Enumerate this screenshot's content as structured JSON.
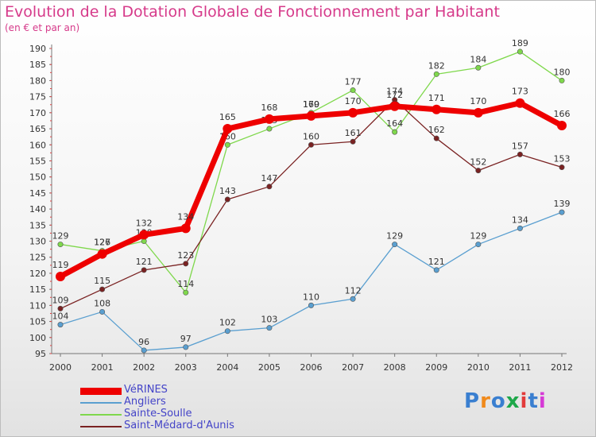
{
  "title": "Evolution de la Dotation Globale de Fonctionnement par Habitant",
  "subtitle": "(en € et par an)",
  "brand": {
    "text": "Proxiti",
    "colors": [
      "#3a7fd0",
      "#f08a1c",
      "#3a7fd0",
      "#1ea84a",
      "#e23b3b",
      "#3a7fd0",
      "#d63ad6"
    ]
  },
  "chart_data": {
    "type": "line",
    "title": "Evolution de la Dotation Globale de Fonctionnement par Habitant",
    "subtitle": "(en € et par an)",
    "x": [
      "2000",
      "2001",
      "2002",
      "2003",
      "2004",
      "2005",
      "2006",
      "2007",
      "2008",
      "2009",
      "2010",
      "2011",
      "2012"
    ],
    "ylim": [
      95,
      190
    ],
    "yticks": [
      95,
      100,
      105,
      110,
      115,
      120,
      125,
      130,
      135,
      140,
      145,
      150,
      155,
      160,
      165,
      170,
      175,
      180,
      185,
      190
    ],
    "grid": false,
    "legend_position": "bottom-left",
    "series": [
      {
        "name": "Angliers",
        "color": "#5a9fd0",
        "values": [
          104,
          108,
          96,
          97,
          102,
          103,
          110,
          112,
          129,
          121,
          129,
          134,
          139
        ]
      },
      {
        "name": "Sainte-Soulle",
        "color": "#7fd84c",
        "values": [
          129,
          127,
          130,
          114,
          160,
          165,
          170,
          177,
          164,
          182,
          184,
          189,
          180
        ]
      },
      {
        "name": "Saint-Médard-d'Aunis",
        "color": "#7a2222",
        "values": [
          109,
          115,
          121,
          123,
          143,
          147,
          160,
          161,
          174,
          162,
          152,
          157,
          153
        ]
      },
      {
        "name": "VéRINES",
        "color": "#ee0000",
        "values": [
          119,
          126,
          132,
          134,
          165,
          168,
          169,
          170,
          172,
          171,
          170,
          173,
          166
        ]
      }
    ]
  },
  "legend_order": [
    "VéRINES",
    "Angliers",
    "Sainte-Soulle",
    "Saint-Médard-d'Aunis"
  ]
}
